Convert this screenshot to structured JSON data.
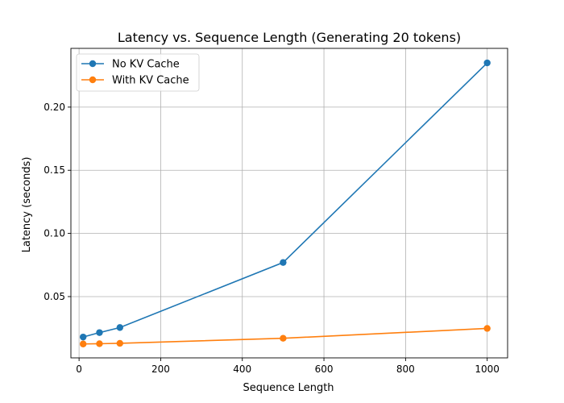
{
  "chart_data": {
    "type": "line",
    "title": "Latency vs. Sequence Length (Generating 20 tokens)",
    "xlabel": "Sequence Length",
    "ylabel": "Latency (seconds)",
    "xlim": [
      -20,
      1050
    ],
    "ylim": [
      0.0015,
      0.2465
    ],
    "xticks": [
      0,
      200,
      400,
      600,
      800,
      1000
    ],
    "xtick_labels": [
      "0",
      "200",
      "400",
      "600",
      "800",
      "1000"
    ],
    "yticks": [
      0.05,
      0.1,
      0.15,
      0.2
    ],
    "ytick_labels": [
      "0.05",
      "0.10",
      "0.15",
      "0.20"
    ],
    "grid": true,
    "legend_position": "top-left",
    "x": [
      10,
      50,
      100,
      500,
      1000
    ],
    "series": [
      {
        "name": "No KV Cache",
        "color": "#1f77b4",
        "marker": "circle",
        "values": [
          0.018,
          0.0215,
          0.0255,
          0.077,
          0.235
        ]
      },
      {
        "name": "With KV Cache",
        "color": "#ff7f0e",
        "marker": "circle",
        "values": [
          0.0125,
          0.0127,
          0.013,
          0.017,
          0.0248
        ]
      }
    ]
  }
}
